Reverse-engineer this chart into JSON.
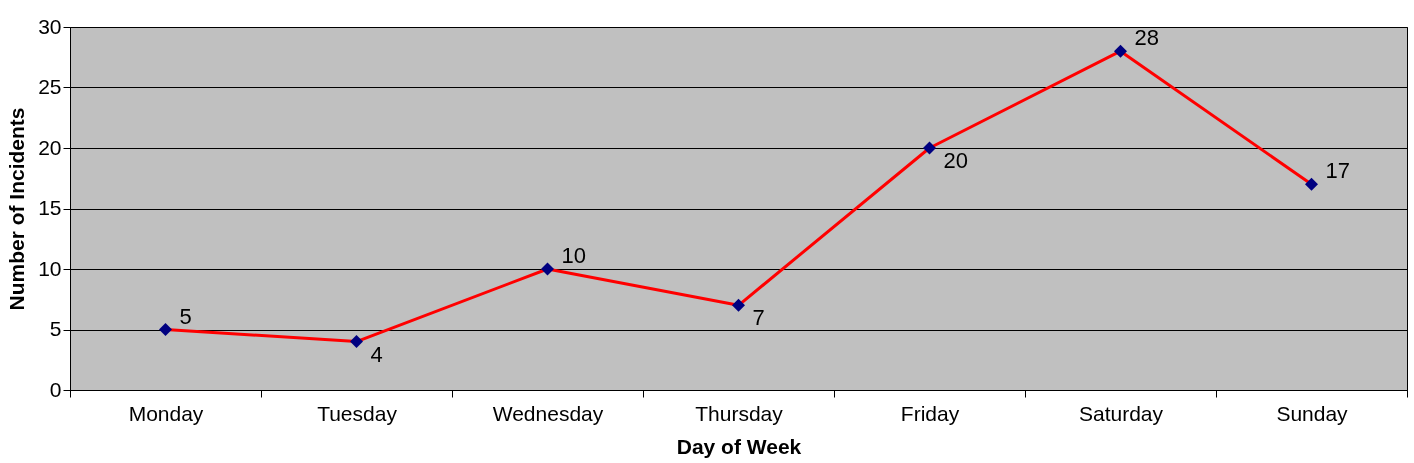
{
  "chart_data": {
    "type": "line",
    "xlabel": "Day of Week",
    "ylabel": "Number of Incidents",
    "categories": [
      "Monday",
      "Tuesday",
      "Wednesday",
      "Thursday",
      "Friday",
      "Saturday",
      "Sunday"
    ],
    "series": [
      {
        "color": "#ff0000",
        "values": [
          5,
          4,
          10,
          7,
          20,
          28,
          17
        ]
      }
    ],
    "ylim": [
      0,
      30
    ],
    "yticks": [
      0,
      5,
      10,
      15,
      20,
      25,
      30
    ],
    "grid": "y",
    "marker": "diamond",
    "line_style": "solid",
    "data_labels": true
  }
}
